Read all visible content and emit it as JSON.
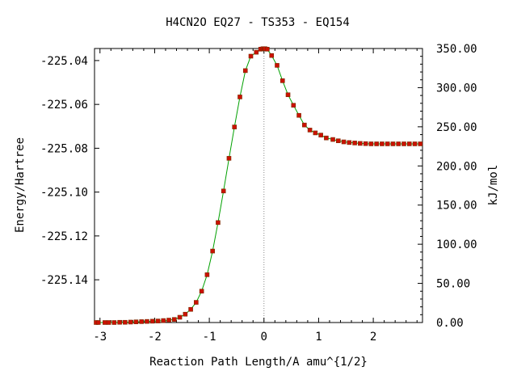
{
  "chart_data": {
    "type": "line",
    "title": "H4CN2O   EQ27 - TS353 - EQ154",
    "xlabel": "Reaction Path Length/A amu^{1/2}",
    "ylabel": "Energy/Hartree",
    "y2label": "kJ/mol",
    "xlim": [
      -3.1,
      2.9
    ],
    "ylim": [
      -225.1595,
      -225.0345
    ],
    "y2lim": [
      0,
      350
    ],
    "x_ticks": [
      -3,
      -2,
      -1,
      0,
      1,
      2
    ],
    "x_tick_labels": [
      "-3",
      "-2",
      "-1",
      "0",
      "1",
      "2"
    ],
    "y_ticks": [
      -225.04,
      -225.06,
      -225.08,
      -225.1,
      -225.12,
      -225.14
    ],
    "y_tick_labels": [
      "-225.04",
      "-225.06",
      "-225.08",
      "-225.10",
      "-225.12",
      "-225.14"
    ],
    "y2_ticks": [
      350,
      300,
      250,
      200,
      150,
      100,
      50,
      0
    ],
    "y2_tick_labels": [
      "350.00",
      "300.00",
      "250.00",
      "200.00",
      "150.00",
      "100.00",
      "50.00",
      "0.00"
    ],
    "ts_marker_x": 0,
    "line_color": "#00a000",
    "marker_color": "#cc1100",
    "series": [
      {
        "x": [
          -3.07,
          -3.03,
          -2.91,
          -2.84,
          -2.74,
          -2.64,
          -2.54,
          -2.44,
          -2.34,
          -2.24,
          -2.14,
          -2.04,
          -1.94,
          -1.84,
          -1.74,
          -1.64,
          -1.54,
          -1.44,
          -1.34,
          -1.24,
          -1.14,
          -1.04,
          -0.94,
          -0.84,
          -0.74,
          -0.64,
          -0.54,
          -0.44,
          -0.34,
          -0.24,
          -0.14,
          -0.06,
          -0.02,
          0.0,
          0.02,
          0.06,
          0.14,
          0.24,
          0.34,
          0.44,
          0.54,
          0.64,
          0.74,
          0.84,
          0.94,
          1.04,
          1.14,
          1.26,
          1.36,
          1.46,
          1.56,
          1.66,
          1.76,
          1.86,
          1.96,
          2.06,
          2.16,
          2.26,
          2.36,
          2.46,
          2.56,
          2.66,
          2.76,
          2.86
        ],
        "y": [
          -225.1595,
          -225.1595,
          -225.1595,
          -225.1595,
          -225.1595,
          -225.1594,
          -225.1594,
          -225.1593,
          -225.1592,
          -225.1591,
          -225.159,
          -225.1589,
          -225.1588,
          -225.1586,
          -225.1584,
          -225.1581,
          -225.1571,
          -225.1557,
          -225.1535,
          -225.1503,
          -225.1452,
          -225.1377,
          -225.1269,
          -225.1139,
          -225.0995,
          -225.0846,
          -225.0703,
          -225.0566,
          -225.0446,
          -225.038,
          -225.0362,
          -225.0348,
          -225.0346,
          -225.0346,
          -225.0346,
          -225.0348,
          -225.0377,
          -225.0422,
          -225.0492,
          -225.0556,
          -225.0604,
          -225.065,
          -225.0694,
          -225.0717,
          -225.073,
          -225.074,
          -225.0753,
          -225.076,
          -225.0766,
          -225.0771,
          -225.0774,
          -225.0776,
          -225.0778,
          -225.0779,
          -225.078,
          -225.078,
          -225.078,
          -225.078,
          -225.078,
          -225.078,
          -225.078,
          -225.078,
          -225.078,
          -225.078
        ]
      }
    ]
  }
}
